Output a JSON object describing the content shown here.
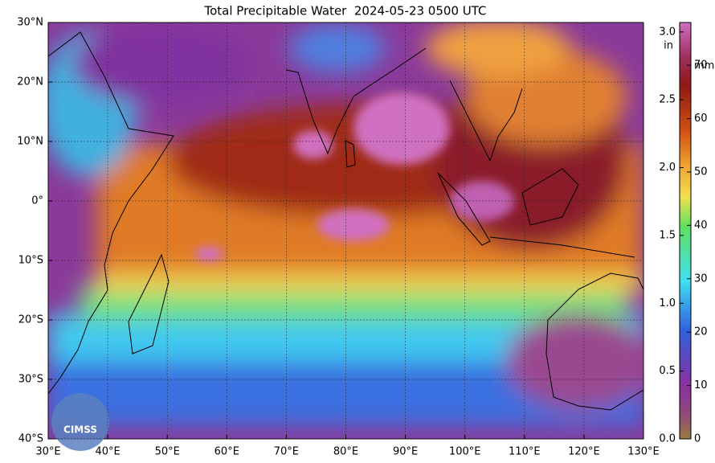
{
  "title": "Total Precipitable Water  2024-05-23 0500 UTC",
  "map": {
    "lon_lim": [
      30,
      130
    ],
    "lat_lim": [
      -40,
      30
    ],
    "lat_ticks": [
      {
        "value": 30,
        "label": "30°N"
      },
      {
        "value": 20,
        "label": "20°N"
      },
      {
        "value": 10,
        "label": "10°N"
      },
      {
        "value": 0,
        "label": "0°"
      },
      {
        "value": -10,
        "label": "10°S"
      },
      {
        "value": -20,
        "label": "20°S"
      },
      {
        "value": -30,
        "label": "30°S"
      },
      {
        "value": -40,
        "label": "40°S"
      }
    ],
    "lon_ticks": [
      {
        "value": 30,
        "label": "30°E"
      },
      {
        "value": 40,
        "label": "40°E"
      },
      {
        "value": 50,
        "label": "50°E"
      },
      {
        "value": 60,
        "label": "60°E"
      },
      {
        "value": 70,
        "label": "70°E"
      },
      {
        "value": 80,
        "label": "80°E"
      },
      {
        "value": 90,
        "label": "90°E"
      },
      {
        "value": 100,
        "label": "100°E"
      },
      {
        "value": 110,
        "label": "110°E"
      },
      {
        "value": 120,
        "label": "120°E"
      },
      {
        "value": 130,
        "label": "130°E"
      }
    ],
    "logo": "CIMSS"
  },
  "colorbar": {
    "in_label": "in",
    "mm_label": "mm",
    "in_lim": [
      0,
      3.07
    ],
    "mm_lim": [
      0,
      78
    ],
    "in_ticks": [
      {
        "value": 0,
        "label": "0.0"
      },
      {
        "value": 0.5,
        "label": "0.5"
      },
      {
        "value": 1,
        "label": "1.0"
      },
      {
        "value": 1.5,
        "label": "1.5"
      },
      {
        "value": 2,
        "label": "2.0"
      },
      {
        "value": 2.5,
        "label": "2.5"
      },
      {
        "value": 3,
        "label": "3.0"
      }
    ],
    "mm_ticks": [
      0,
      10,
      20,
      30,
      40,
      50,
      60,
      70
    ]
  }
}
